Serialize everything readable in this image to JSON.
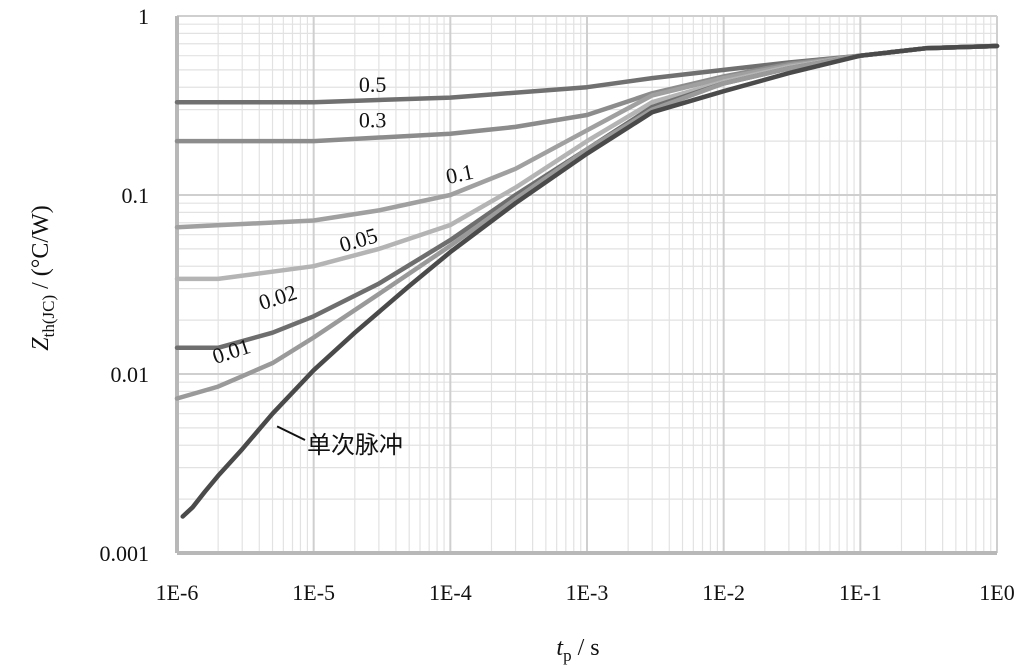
{
  "chart_data": {
    "type": "line",
    "x_scale": "log",
    "y_scale": "log",
    "xlim": [
      1e-06,
      1
    ],
    "ylim": [
      0.001,
      1
    ],
    "grid": true,
    "x_ticks": [
      "1E-6",
      "1E-5",
      "1E-4",
      "1E-3",
      "1E-2",
      "1E-1",
      "1E0"
    ],
    "y_ticks": [
      "0.001",
      "0.01",
      "0.1",
      "1"
    ],
    "xlabel": {
      "var": "t",
      "sub": "p",
      "unit": " / s"
    },
    "ylabel": {
      "var": "Z",
      "sub": "th(JC)",
      "unit": " / (°C/W)"
    },
    "series": [
      {
        "name": "0.5",
        "color": "#707070",
        "x": [
          1e-06,
          1e-05,
          0.0001,
          0.001,
          0.003,
          0.01,
          0.03,
          0.1,
          0.3,
          1
        ],
        "y": [
          0.33,
          0.33,
          0.35,
          0.4,
          0.45,
          0.5,
          0.55,
          0.6,
          0.66,
          0.68
        ]
      },
      {
        "name": "0.3",
        "color": "#8c8c8c",
        "x": [
          1e-06,
          1e-05,
          0.0001,
          0.0003,
          0.001,
          0.003,
          0.01,
          0.03,
          0.1,
          0.3,
          1
        ],
        "y": [
          0.2,
          0.2,
          0.22,
          0.24,
          0.28,
          0.37,
          0.46,
          0.54,
          0.6,
          0.66,
          0.68
        ]
      },
      {
        "name": "0.1",
        "color": "#a0a0a0",
        "x": [
          1e-06,
          1e-05,
          3e-05,
          0.0001,
          0.0003,
          0.001,
          0.003,
          0.01,
          0.03,
          0.1,
          0.3,
          1
        ],
        "y": [
          0.066,
          0.072,
          0.082,
          0.1,
          0.14,
          0.23,
          0.36,
          0.45,
          0.53,
          0.6,
          0.66,
          0.68
        ]
      },
      {
        "name": "0.05",
        "color": "#b4b4b4",
        "x": [
          1e-06,
          2e-06,
          1e-05,
          3e-05,
          0.0001,
          0.0003,
          0.001,
          0.003,
          0.01,
          0.03,
          0.1,
          0.3,
          1
        ],
        "y": [
          0.034,
          0.034,
          0.04,
          0.05,
          0.068,
          0.11,
          0.2,
          0.33,
          0.43,
          0.52,
          0.6,
          0.66,
          0.68
        ]
      },
      {
        "name": "0.02",
        "color": "#6e6e6e",
        "x": [
          1e-06,
          2e-06,
          5e-06,
          1e-05,
          3e-05,
          0.0001,
          0.0003,
          0.001,
          0.003,
          0.01,
          0.03,
          0.1,
          0.3,
          1
        ],
        "y": [
          0.014,
          0.014,
          0.017,
          0.021,
          0.032,
          0.056,
          0.1,
          0.18,
          0.31,
          0.42,
          0.51,
          0.6,
          0.66,
          0.68
        ]
      },
      {
        "name": "0.01",
        "color": "#9a9a9a",
        "x": [
          1e-06,
          2e-06,
          5e-06,
          1e-05,
          3e-05,
          0.0001,
          0.0003,
          0.001,
          0.003,
          0.01,
          0.03,
          0.1,
          0.3,
          1
        ],
        "y": [
          0.0073,
          0.0085,
          0.0115,
          0.016,
          0.028,
          0.052,
          0.095,
          0.18,
          0.3,
          0.42,
          0.51,
          0.6,
          0.66,
          0.68
        ]
      },
      {
        "name": "单次脉冲",
        "color": "#4a4a4a",
        "x": [
          1.1e-06,
          1.3e-06,
          1.6e-06,
          2e-06,
          3e-06,
          5e-06,
          1e-05,
          2e-05,
          5e-05,
          0.0001,
          0.0003,
          0.001,
          0.003,
          0.01,
          0.03,
          0.1,
          0.3,
          1
        ],
        "y": [
          0.0016,
          0.0018,
          0.0022,
          0.0027,
          0.0038,
          0.006,
          0.0105,
          0.017,
          0.031,
          0.048,
          0.09,
          0.17,
          0.29,
          0.38,
          0.48,
          0.6,
          0.66,
          0.68
        ]
      }
    ]
  }
}
